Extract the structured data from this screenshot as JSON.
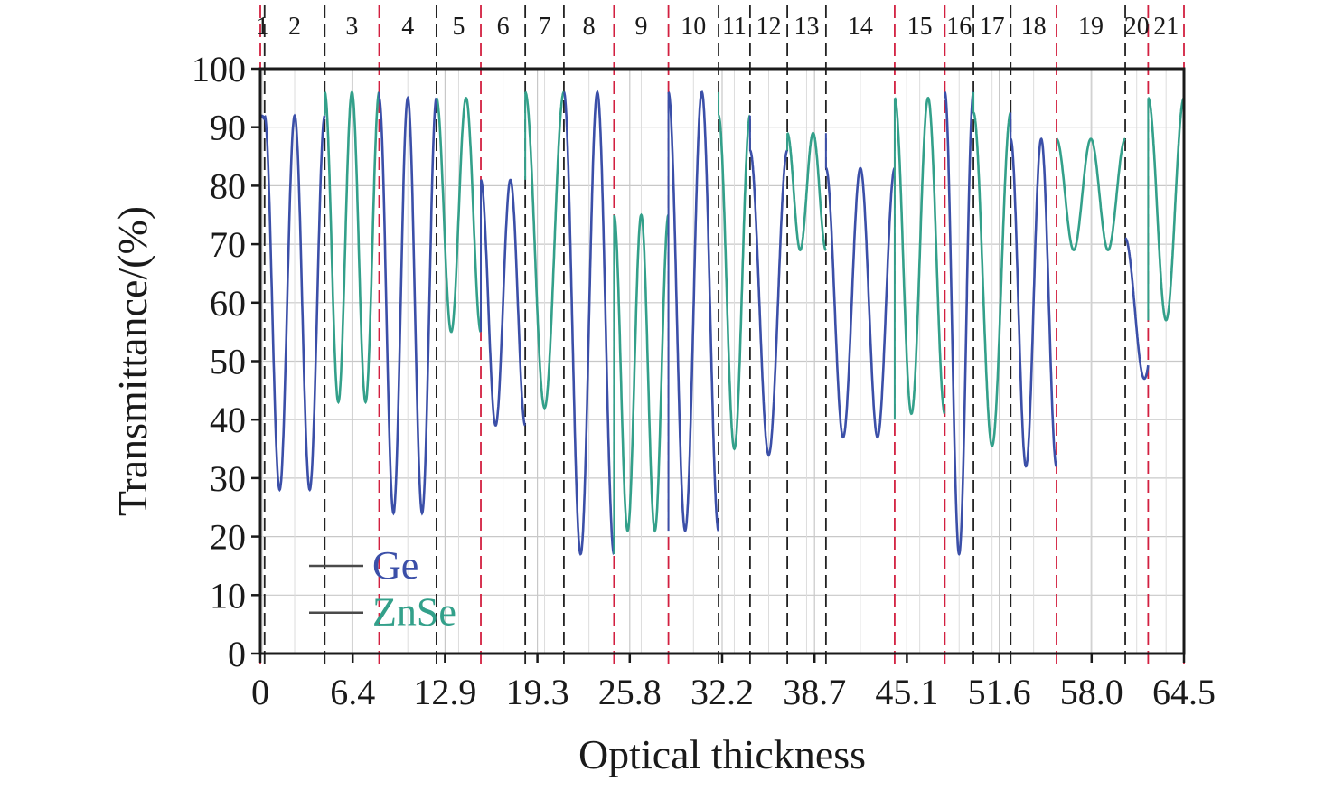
{
  "chart_data": {
    "type": "line",
    "xlabel": "Optical thickness",
    "ylabel": "Transmittance/(%)",
    "xlim": [
      0,
      64.5
    ],
    "ylim": [
      0,
      100
    ],
    "x_ticks": [
      "0",
      "6.4",
      "12.9",
      "19.3",
      "25.8",
      "32.2",
      "38.7",
      "45.1",
      "51.6",
      "58.0",
      "64.5"
    ],
    "x_tick_values": [
      0,
      6.45,
      12.9,
      19.35,
      25.8,
      32.25,
      38.7,
      45.15,
      51.6,
      58.05,
      64.5
    ],
    "y_ticks": [
      "0",
      "10",
      "20",
      "30",
      "40",
      "50",
      "60",
      "70",
      "80",
      "90",
      "100"
    ],
    "y_tick_values": [
      0,
      10,
      20,
      30,
      40,
      50,
      60,
      70,
      80,
      90,
      100
    ],
    "grid": true,
    "legend": {
      "placement": "bottom-left",
      "entries": [
        {
          "label": "Ge",
          "color": "#3b4fa8"
        },
        {
          "label": "ZnSe",
          "color": "#33a08a"
        }
      ]
    },
    "layers": [
      {
        "label": "1",
        "start": 0.0,
        "end": 0.3,
        "material": "Ge",
        "start_T": 50.0,
        "min_T": 28.0,
        "max_T": 92.0,
        "cycles": 0.03
      },
      {
        "label": "2",
        "start": 0.3,
        "end": 4.5,
        "material": "Ge",
        "start_T": 92.0,
        "min_T": 28.0,
        "max_T": 92.0,
        "cycles": 2.0
      },
      {
        "label": "3",
        "start": 4.5,
        "end": 8.3,
        "material": "ZnSe",
        "start_T": 92.0,
        "min_T": 43.0,
        "max_T": 96.0,
        "cycles": 2.0
      },
      {
        "label": "4",
        "start": 8.3,
        "end": 12.3,
        "material": "Ge",
        "start_T": 96.0,
        "min_T": 24.0,
        "max_T": 95.0,
        "cycles": 2.0
      },
      {
        "label": "5",
        "start": 12.3,
        "end": 15.4,
        "material": "ZnSe",
        "start_T": 95.0,
        "min_T": 55.0,
        "max_T": 95.0,
        "cycles": 1.5
      },
      {
        "label": "6",
        "start": 15.4,
        "end": 18.5,
        "material": "Ge",
        "start_T": 55.0,
        "min_T": 39.0,
        "max_T": 81.0,
        "cycles": 1.5
      },
      {
        "label": "7",
        "start": 18.5,
        "end": 21.2,
        "material": "ZnSe",
        "start_T": 81.0,
        "min_T": 42.0,
        "max_T": 96.0,
        "cycles": 1.0
      },
      {
        "label": "8",
        "start": 21.2,
        "end": 24.7,
        "material": "Ge",
        "start_T": 96.0,
        "min_T": 17.0,
        "max_T": 96.0,
        "cycles": 1.5
      },
      {
        "label": "9",
        "start": 24.7,
        "end": 28.5,
        "material": "ZnSe",
        "start_T": 17.0,
        "min_T": 21.0,
        "max_T": 75.0,
        "cycles": 2.0
      },
      {
        "label": "10",
        "start": 28.5,
        "end": 32.0,
        "material": "Ge",
        "start_T": 21.0,
        "min_T": 21.0,
        "max_T": 96.0,
        "cycles": 1.5
      },
      {
        "label": "11",
        "start": 32.0,
        "end": 34.2,
        "material": "ZnSe",
        "start_T": 96.0,
        "min_T": 35.0,
        "max_T": 92.0,
        "cycles": 1.0
      },
      {
        "label": "12",
        "start": 34.2,
        "end": 36.8,
        "material": "Ge",
        "start_T": 92.0,
        "min_T": 34.0,
        "max_T": 86.0,
        "cycles": 1.0
      },
      {
        "label": "13",
        "start": 36.8,
        "end": 39.5,
        "material": "ZnSe",
        "start_T": 86.0,
        "min_T": 69.0,
        "max_T": 89.0,
        "cycles": 1.5
      },
      {
        "label": "14",
        "start": 39.5,
        "end": 44.3,
        "material": "Ge",
        "start_T": 89.0,
        "min_T": 37.0,
        "max_T": 83.0,
        "cycles": 2.0
      },
      {
        "label": "15",
        "start": 44.3,
        "end": 47.8,
        "material": "ZnSe",
        "start_T": 40.0,
        "min_T": 41.0,
        "max_T": 95.0,
        "cycles": 1.5
      },
      {
        "label": "16",
        "start": 47.8,
        "end": 49.8,
        "material": "Ge",
        "start_T": 95.0,
        "min_T": 17.0,
        "max_T": 96.0,
        "cycles": 1.0
      },
      {
        "label": "17",
        "start": 49.8,
        "end": 52.4,
        "material": "ZnSe",
        "start_T": 96.0,
        "min_T": 35.5,
        "max_T": 92.5,
        "cycles": 1.0
      },
      {
        "label": "18",
        "start": 52.4,
        "end": 55.6,
        "material": "Ge",
        "start_T": 92.5,
        "min_T": 32.0,
        "max_T": 88.0,
        "cycles": 1.5
      },
      {
        "label": "19",
        "start": 55.6,
        "end": 60.4,
        "material": "ZnSe",
        "start_T": 88.0,
        "min_T": 69.0,
        "max_T": 88.0,
        "cycles": 2.0
      },
      {
        "label": "20",
        "start": 60.4,
        "end": 62.0,
        "material": "Ge",
        "start_T": 71.0,
        "min_T": 47.0,
        "max_T": 71.0,
        "cycles": 0.6
      },
      {
        "label": "21",
        "start": 62.0,
        "end": 64.5,
        "material": "ZnSe",
        "start_T": 57.0,
        "min_T": 57.0,
        "max_T": 95.0,
        "cycles": 1.0
      }
    ],
    "boundary_colors": {
      "red": "#d22040",
      "black": "#222222"
    },
    "red_boundaries": [
      0.0,
      8.3,
      15.4,
      24.7,
      28.5,
      44.3,
      47.8,
      55.6,
      62.0,
      64.5
    ]
  }
}
